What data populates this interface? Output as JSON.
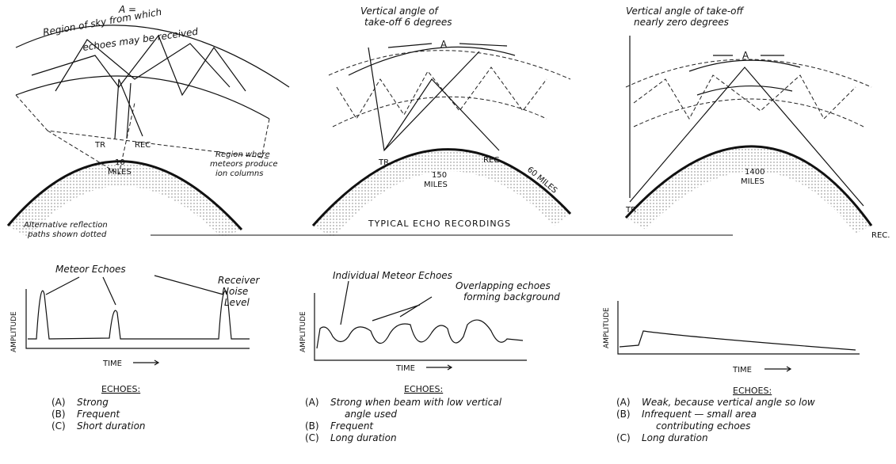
{
  "panels": [
    {
      "heading": [
        "A =",
        "Region of sky from which",
        "echoes may be received"
      ],
      "labels": {
        "tr": "TR",
        "rec": "REC",
        "distance": "10",
        "unit": "MILES"
      },
      "notes": [
        "Region where",
        "meteors produce",
        "ion columns"
      ],
      "footnote": [
        "Alternative reflection",
        "paths shown dotted"
      ]
    },
    {
      "heading": [
        "Vertical angle of",
        "take-off 6 degrees"
      ],
      "region": "A",
      "labels": {
        "tr": "TR",
        "rec": "REC.",
        "distance": "150",
        "unit": "MILES"
      },
      "height": "60 MILES"
    },
    {
      "heading": [
        "Vertical angle of take-off",
        "nearly zero degrees"
      ],
      "region": "A",
      "labels": {
        "tr": "TR",
        "rec": "REC.",
        "distance": "1400",
        "unit": "MILES"
      }
    }
  ],
  "section_title": "TYPICAL ECHO RECORDINGS",
  "recordings": [
    {
      "annotations": [
        "Meteor Echoes",
        "Receiver",
        "Noise",
        "Level"
      ],
      "y_axis": "AMPLITUDE",
      "x_axis": "TIME",
      "list_title": "ECHOES:",
      "items": [
        {
          "letter": "(A)",
          "lines": [
            "Strong"
          ]
        },
        {
          "letter": "(B)",
          "lines": [
            "Frequent"
          ]
        },
        {
          "letter": "(C)",
          "lines": [
            "Short duration"
          ]
        }
      ]
    },
    {
      "annotations": [
        "Individual Meteor Echoes",
        "Overlapping echoes",
        "forming background"
      ],
      "y_axis": "AMPLITUDE",
      "x_axis": "TIME",
      "list_title": "ECHOES:",
      "items": [
        {
          "letter": "(A)",
          "lines": [
            "Strong when beam with low vertical",
            "angle used"
          ]
        },
        {
          "letter": "(B)",
          "lines": [
            "Frequent"
          ]
        },
        {
          "letter": "(C)",
          "lines": [
            "Long duration"
          ]
        }
      ]
    },
    {
      "y_axis": "AMPLITUDE",
      "x_axis": "TIME",
      "list_title": "ECHOES:",
      "items": [
        {
          "letter": "(A)",
          "lines": [
            "Weak, because vertical angle so low"
          ]
        },
        {
          "letter": "(B)",
          "lines": [
            "Infrequent — small area",
            "contributing echoes"
          ]
        },
        {
          "letter": "(C)",
          "lines": [
            "Long duration"
          ]
        }
      ]
    }
  ]
}
